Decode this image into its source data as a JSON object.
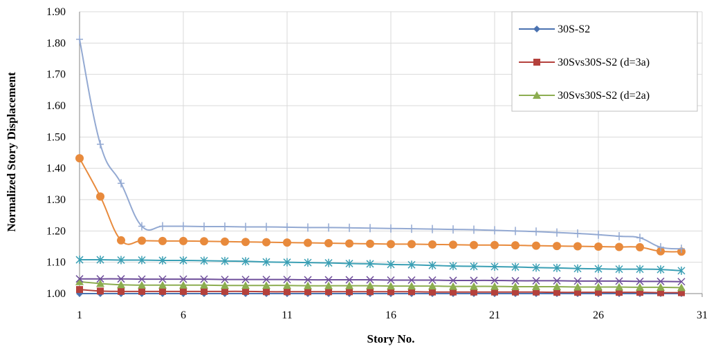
{
  "chart_data": {
    "type": "line",
    "xlabel": "Story No.",
    "ylabel": "Normalized Story Displacement",
    "xlim": [
      0,
      31
    ],
    "ylim": [
      1.0,
      1.9
    ],
    "x_ticks": [
      "1",
      "6",
      "11",
      "16",
      "21",
      "26",
      "31"
    ],
    "y_ticks": [
      "1.00",
      "1.10",
      "1.20",
      "1.30",
      "1.40",
      "1.50",
      "1.60",
      "1.70",
      "1.80",
      "1.90"
    ],
    "grid": true,
    "legend_position": "top-right",
    "x": [
      1,
      2,
      3,
      4,
      5,
      6,
      7,
      8,
      9,
      10,
      11,
      12,
      13,
      14,
      15,
      16,
      17,
      18,
      19,
      20,
      21,
      22,
      23,
      24,
      25,
      26,
      27,
      28,
      29,
      30
    ],
    "series": [
      {
        "name": "30S-S2",
        "color": "#4a72b0",
        "marker": "diamond",
        "in_legend": true,
        "values": [
          1.0,
          1.0,
          1.0,
          1.0,
          1.0,
          1.0,
          1.0,
          1.0,
          1.0,
          1.0,
          1.0,
          1.0,
          1.0,
          1.0,
          1.0,
          1.0,
          1.0,
          1.0,
          1.0,
          1.0,
          1.0,
          1.0,
          1.0,
          1.0,
          1.0,
          1.0,
          1.0,
          1.0,
          1.0,
          1.0
        ]
      },
      {
        "name": "30Svs30S-S2 (d=3a)",
        "color": "#b4413c",
        "marker": "square",
        "in_legend": true,
        "values": [
          1.013,
          1.008,
          1.007,
          1.007,
          1.007,
          1.007,
          1.007,
          1.007,
          1.007,
          1.006,
          1.006,
          1.006,
          1.006,
          1.006,
          1.006,
          1.006,
          1.006,
          1.005,
          1.005,
          1.005,
          1.005,
          1.005,
          1.005,
          1.004,
          1.004,
          1.004,
          1.004,
          1.004,
          1.003,
          1.003
        ]
      },
      {
        "name": "30Svs30S-S2 (d=2a)",
        "color": "#8cad50",
        "marker": "triangle",
        "in_legend": true,
        "values": [
          1.038,
          1.032,
          1.028,
          1.027,
          1.027,
          1.027,
          1.027,
          1.026,
          1.026,
          1.026,
          1.026,
          1.025,
          1.025,
          1.025,
          1.025,
          1.024,
          1.024,
          1.024,
          1.023,
          1.023,
          1.023,
          1.022,
          1.022,
          1.022,
          1.021,
          1.021,
          1.021,
          1.02,
          1.02,
          1.019
        ]
      },
      {
        "name": "",
        "color": "#6e4e9a",
        "marker": "x",
        "in_legend": false,
        "values": [
          1.047,
          1.047,
          1.047,
          1.046,
          1.046,
          1.046,
          1.046,
          1.045,
          1.045,
          1.045,
          1.045,
          1.044,
          1.044,
          1.044,
          1.044,
          1.043,
          1.043,
          1.043,
          1.042,
          1.042,
          1.042,
          1.041,
          1.041,
          1.041,
          1.04,
          1.04,
          1.04,
          1.039,
          1.039,
          1.038
        ]
      },
      {
        "name": "",
        "color": "#3a9fb4",
        "marker": "star",
        "in_legend": false,
        "values": [
          1.108,
          1.108,
          1.107,
          1.107,
          1.106,
          1.106,
          1.105,
          1.104,
          1.103,
          1.101,
          1.1,
          1.099,
          1.098,
          1.096,
          1.095,
          1.093,
          1.092,
          1.09,
          1.088,
          1.087,
          1.086,
          1.085,
          1.083,
          1.082,
          1.08,
          1.079,
          1.078,
          1.078,
          1.077,
          1.073
        ]
      },
      {
        "name": "",
        "color": "#e88a3c",
        "marker": "circle",
        "in_legend": false,
        "values": [
          1.432,
          1.31,
          1.17,
          1.169,
          1.168,
          1.168,
          1.167,
          1.166,
          1.165,
          1.164,
          1.163,
          1.162,
          1.161,
          1.16,
          1.159,
          1.158,
          1.158,
          1.157,
          1.156,
          1.155,
          1.155,
          1.154,
          1.153,
          1.152,
          1.151,
          1.15,
          1.149,
          1.148,
          1.135,
          1.134
        ]
      },
      {
        "name": "",
        "color": "#93a9d2",
        "marker": "plus",
        "in_legend": false,
        "values": [
          1.812,
          1.477,
          1.352,
          1.215,
          1.215,
          1.215,
          1.214,
          1.214,
          1.213,
          1.213,
          1.212,
          1.211,
          1.211,
          1.21,
          1.209,
          1.208,
          1.207,
          1.206,
          1.205,
          1.204,
          1.202,
          1.2,
          1.198,
          1.195,
          1.192,
          1.188,
          1.183,
          1.178,
          1.148,
          1.143
        ]
      }
    ]
  }
}
